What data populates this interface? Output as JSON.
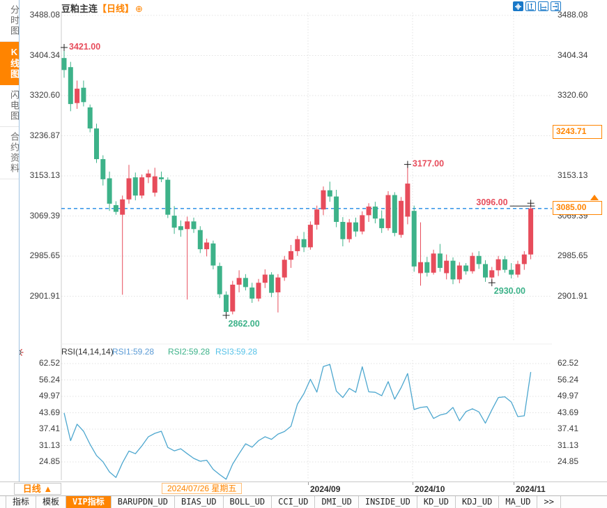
{
  "header": {
    "title": "豆粕主连",
    "period": "【日线】",
    "add_icon": "⊕"
  },
  "sidebar": {
    "items": [
      {
        "label": "分时图",
        "name": "sidebar-item-time-share-chart",
        "selected": false
      },
      {
        "label": "K线图",
        "name": "sidebar-item-kline-chart",
        "selected": true
      },
      {
        "label": "闪电图",
        "name": "sidebar-item-flash-chart",
        "selected": false
      },
      {
        "label": "合约资料",
        "name": "sidebar-item-contract-info",
        "selected": false
      }
    ]
  },
  "toolbar": {
    "icons": [
      "chart-pan-icon",
      "y-axis-zoom-icon",
      "x-axis-zoom-icon",
      "exit-chart-icon"
    ]
  },
  "colors": {
    "up": "#e74c5b",
    "down": "#3db289",
    "accent_orange": "#ff8400",
    "last_price_line_blue": "#1e88e5",
    "rsi_line": "#4da7cf",
    "rsi1_label": "#5b9bd5",
    "rsi2_label": "#3db289",
    "rsi3_label": "#56c2e8",
    "icon_blue": "#1878c8"
  },
  "chart_data": [
    {
      "type": "candlestick",
      "name": "豆粕主连 日线 K线",
      "y_ticks": [
        "3488.08",
        "3404.34",
        "3320.60",
        "3236.87",
        "3153.13",
        "3069.39",
        "2985.65",
        "2901.91"
      ],
      "x_ticks": [
        "2024/09",
        "2024/10",
        "2024/11"
      ],
      "grid": true,
      "candles_ohlc": [
        [
          3399,
          3421,
          3358,
          3374
        ],
        [
          3380,
          3391,
          3288,
          3303
        ],
        [
          3305,
          3352,
          3293,
          3335
        ],
        [
          3337,
          3352,
          3298,
          3307
        ],
        [
          3296,
          3302,
          3244,
          3252
        ],
        [
          3252,
          3262,
          3180,
          3188
        ],
        [
          3188,
          3196,
          3133,
          3146
        ],
        [
          3148,
          3162,
          3080,
          3095
        ],
        [
          3092,
          3100,
          3072,
          3078
        ],
        [
          3072,
          3112,
          2905,
          3104
        ],
        [
          3104,
          3176,
          3095,
          3148
        ],
        [
          3150,
          3160,
          3102,
          3112
        ],
        [
          3112,
          3156,
          3106,
          3150
        ],
        [
          3150,
          3166,
          3138,
          3158
        ],
        [
          3118,
          3170,
          3110,
          3152
        ],
        [
          3150,
          3162,
          3140,
          3146
        ],
        [
          3145,
          3150,
          3065,
          3072
        ],
        [
          3070,
          3090,
          3032,
          3045
        ],
        [
          3048,
          3060,
          3026,
          3040
        ],
        [
          3042,
          3068,
          2895,
          3058
        ],
        [
          3058,
          3066,
          3034,
          3042
        ],
        [
          3040,
          3048,
          2992,
          3000
        ],
        [
          3000,
          3022,
          2985,
          3014
        ],
        [
          3012,
          3018,
          2958,
          2966
        ],
        [
          2965,
          2972,
          2898,
          2906
        ],
        [
          2905,
          2912,
          2862,
          2869
        ],
        [
          2870,
          2934,
          2864,
          2926
        ],
        [
          2926,
          2956,
          2910,
          2940
        ],
        [
          2940,
          2948,
          2914,
          2921
        ],
        [
          2920,
          2930,
          2888,
          2897
        ],
        [
          2897,
          2938,
          2891,
          2930
        ],
        [
          2930,
          2958,
          2919,
          2947
        ],
        [
          2947,
          2952,
          2900,
          2909
        ],
        [
          2910,
          2948,
          2868,
          2941
        ],
        [
          2941,
          2986,
          2934,
          2978
        ],
        [
          2978,
          3009,
          2961,
          2996
        ],
        [
          2996,
          3028,
          2986,
          3021
        ],
        [
          3021,
          3036,
          2994,
          3004
        ],
        [
          3004,
          3058,
          2999,
          3051
        ],
        [
          3051,
          3091,
          3041,
          3083
        ],
        [
          3083,
          3131,
          3071,
          3123
        ],
        [
          3123,
          3141,
          3099,
          3110
        ],
        [
          3110,
          3124,
          3046,
          3057
        ],
        [
          3057,
          3067,
          3006,
          3021
        ],
        [
          3021,
          3063,
          3014,
          3056
        ],
        [
          3056,
          3066,
          3026,
          3037
        ],
        [
          3037,
          3079,
          3031,
          3071
        ],
        [
          3071,
          3096,
          3057,
          3089
        ],
        [
          3089,
          3099,
          3054,
          3064
        ],
        [
          3064,
          3081,
          3034,
          3044
        ],
        [
          3044,
          3121,
          3039,
          3113
        ],
        [
          3113,
          3119,
          3027,
          3034
        ],
        [
          3030,
          3109,
          3024,
          3101
        ],
        [
          3068,
          3177,
          3052,
          3137
        ],
        [
          3080,
          3091,
          2953,
          2964
        ],
        [
          2950,
          3056,
          2924,
          2973
        ],
        [
          2973,
          2984,
          2943,
          2951
        ],
        [
          2951,
          2999,
          2947,
          2991
        ],
        [
          2991,
          3011,
          2953,
          2961
        ],
        [
          2950,
          2989,
          2937,
          2976
        ],
        [
          2976,
          2983,
          2927,
          2937
        ],
        [
          2937,
          2973,
          2929,
          2966
        ],
        [
          2966,
          2971,
          2947,
          2954
        ],
        [
          2954,
          2993,
          2949,
          2986
        ],
        [
          2986,
          2996,
          2959,
          2969
        ],
        [
          2969,
          2977,
          2932,
          2941
        ],
        [
          2941,
          2963,
          2930,
          2956
        ],
        [
          2956,
          2986,
          2944,
          2979
        ],
        [
          2979,
          2986,
          2951,
          2957
        ],
        [
          2957,
          2971,
          2939,
          2947
        ],
        [
          2947,
          2976,
          2941,
          2969
        ],
        [
          2969,
          2996,
          2957,
          2989
        ],
        [
          2989,
          3096,
          2979,
          3085
        ]
      ],
      "annotations": [
        {
          "text": "3421.00",
          "index": 0,
          "value": 3421,
          "color": "up",
          "placement": "right"
        },
        {
          "text": "3177.00",
          "index": 53,
          "value": 3177,
          "color": "up",
          "placement": "right"
        },
        {
          "text": "3096.00",
          "index": 72,
          "value": 3096,
          "color": "up",
          "placement": "left-arm"
        },
        {
          "text": "2930.00",
          "index": 66,
          "value": 2930,
          "color": "down",
          "placement": "below"
        },
        {
          "text": "2862.00",
          "index": 25,
          "value": 2862,
          "color": "down",
          "placement": "below"
        }
      ],
      "last_price_line": {
        "value": 3085,
        "label": "3085.00"
      },
      "right_badges": [
        {
          "label": "3243.71",
          "value": 3243.71,
          "arrow": false
        },
        {
          "label": "3085.00",
          "value": 3085,
          "arrow": true
        }
      ]
    },
    {
      "type": "line",
      "name": "RSI(14,14,14)",
      "legend": [
        {
          "label": "RSI1:59.28"
        },
        {
          "label": "RSI2:59.28"
        },
        {
          "label": "RSI3:59.28"
        }
      ],
      "y_ticks": [
        "62.52",
        "56.24",
        "49.97",
        "43.69",
        "37.41",
        "31.13",
        "24.85"
      ],
      "grid": true,
      "values": [
        43.6,
        33,
        39.3,
        36.6,
        31.6,
        27.3,
        24.9,
        21,
        18.9,
        24.5,
        29,
        28,
        31,
        34.5,
        35.8,
        36.6,
        30.4,
        29.1,
        29.9,
        28,
        26.2,
        25.1,
        25.5,
        22,
        20,
        18.2,
        24,
        28,
        31.8,
        30.5,
        33,
        34.5,
        33.5,
        35.5,
        36.5,
        38.5,
        47,
        51,
        56.5,
        51.6,
        61.4,
        62.2,
        52,
        49.5,
        53,
        51.5,
        61.3,
        51.7,
        51.5,
        50.2,
        55.6,
        48.9,
        53.3,
        58.7,
        44.9,
        45.7,
        46,
        41.5,
        42.8,
        43.4,
        45.7,
        40.6,
        44.1,
        45.2,
        44,
        39.7,
        44.8,
        49.5,
        49.8,
        47.8,
        42.2,
        42.5,
        59.28
      ]
    }
  ],
  "bottom_axis": {
    "period_button": "日线 ▲",
    "crosshair_date": "2024/07/26 星期五",
    "month_labels": [
      "2024/09",
      "2024/10",
      "2024/11"
    ]
  },
  "tabbar": {
    "tabs": [
      {
        "label": "指标",
        "name": "tab-indicators",
        "selected": false
      },
      {
        "label": "模板",
        "name": "tab-templates",
        "selected": false
      },
      {
        "label": "VIP指标",
        "name": "tab-vip-indicators",
        "selected": true
      },
      {
        "label": "BARUPDN_UD",
        "name": "tab-barupdn-ud",
        "selected": false
      },
      {
        "label": "BIAS_UD",
        "name": "tab-bias-ud",
        "selected": false
      },
      {
        "label": "BOLL_UD",
        "name": "tab-boll-ud",
        "selected": false
      },
      {
        "label": "CCI_UD",
        "name": "tab-cci-ud",
        "selected": false
      },
      {
        "label": "DMI_UD",
        "name": "tab-dmi-ud",
        "selected": false
      },
      {
        "label": "INSIDE_UD",
        "name": "tab-inside-ud",
        "selected": false
      },
      {
        "label": "KD_UD",
        "name": "tab-kd-ud",
        "selected": false
      },
      {
        "label": "KDJ_UD",
        "name": "tab-kdj-ud",
        "selected": false
      },
      {
        "label": "MA_UD",
        "name": "tab-ma-ud",
        "selected": false
      },
      {
        "label": ">>",
        "name": "tab-more",
        "selected": false
      }
    ]
  }
}
